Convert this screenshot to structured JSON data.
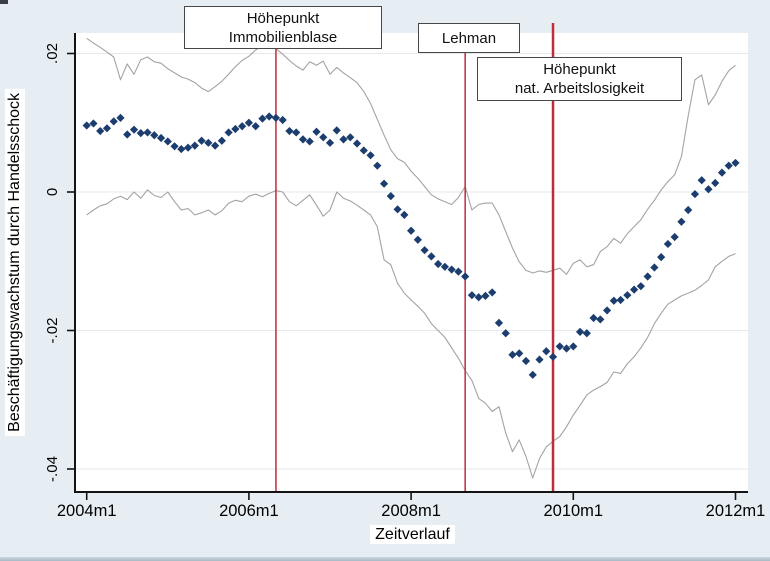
{
  "figure": {
    "background": "#e7eef3",
    "plot_background": "#ffffff",
    "grid_color": "#e3eaef",
    "axis_color": "#141414"
  },
  "annotations": [
    {
      "lines": [
        "Höhepunkt",
        "Immobilienblase"
      ]
    },
    {
      "lines": [
        "Lehman"
      ]
    },
    {
      "lines": [
        "Höhepunkt",
        "nat. Arbeitslosigkeit"
      ]
    }
  ],
  "chart_data": {
    "type": "scatter",
    "title": "",
    "xlabel": "Zeitverlauf",
    "ylabel": "Beschäftigungswachstum durch Handelsschock",
    "x_unit": "monthly index, 0 = 2004m1",
    "n_points": 97,
    "x_ticks": [
      {
        "label": "2004m1",
        "month": 0
      },
      {
        "label": "2006m1",
        "month": 24
      },
      {
        "label": "2008m1",
        "month": 48
      },
      {
        "label": "2010m1",
        "month": 72
      },
      {
        "label": "2012m1",
        "month": 96
      }
    ],
    "y_ticks": [
      {
        "label": ".02",
        "value": 0.02
      },
      {
        "label": "0",
        "value": 0
      },
      {
        "label": "-.02",
        "value": -0.02
      },
      {
        "label": "-.04",
        "value": -0.04
      }
    ],
    "ylim": [
      -0.045,
      0.023
    ],
    "grid": true,
    "legend": "none",
    "series": [
      {
        "name": "point_estimate",
        "type": "scatter",
        "marker": "diamond",
        "color": "#1c3e6f",
        "values": [
          0.0096,
          0.0099,
          0.0088,
          0.0092,
          0.0102,
          0.0107,
          0.0083,
          0.009,
          0.0085,
          0.0086,
          0.0082,
          0.0078,
          0.0073,
          0.0066,
          0.0062,
          0.0064,
          0.0067,
          0.0074,
          0.0071,
          0.0067,
          0.0074,
          0.0086,
          0.0091,
          0.0095,
          0.01,
          0.0095,
          0.0106,
          0.0109,
          0.0107,
          0.0104,
          0.0088,
          0.0086,
          0.0076,
          0.0073,
          0.0087,
          0.0079,
          0.0071,
          0.0089,
          0.0076,
          0.0079,
          0.007,
          0.006,
          0.0053,
          0.0038,
          0.0012,
          -0.0006,
          -0.0025,
          -0.0033,
          -0.0056,
          -0.0069,
          -0.0084,
          -0.0093,
          -0.0104,
          -0.0108,
          -0.0112,
          -0.0115,
          -0.0122,
          -0.0149,
          -0.0152,
          -0.015,
          -0.0145,
          -0.0189,
          -0.0204,
          -0.0235,
          -0.0233,
          -0.0244,
          -0.0264,
          -0.0242,
          -0.023,
          -0.0238,
          -0.0223,
          -0.0226,
          -0.0223,
          -0.0202,
          -0.0204,
          -0.0182,
          -0.0184,
          -0.0171,
          -0.0157,
          -0.0156,
          -0.0149,
          -0.0141,
          -0.0136,
          -0.0122,
          -0.0109,
          -0.0094,
          -0.0075,
          -0.0065,
          -0.0043,
          -0.0026,
          -0.0003,
          0.0017,
          0.0004,
          0.0013,
          0.0028,
          0.0038,
          0.0042
        ]
      },
      {
        "name": "ci_upper",
        "type": "line",
        "color": "#a3a3a3",
        "values": [
          0.0222,
          0.0215,
          0.0209,
          0.0202,
          0.0195,
          0.0162,
          0.0185,
          0.017,
          0.0191,
          0.0195,
          0.0188,
          0.0186,
          0.0178,
          0.0172,
          0.0166,
          0.0163,
          0.0158,
          0.015,
          0.0145,
          0.0152,
          0.016,
          0.017,
          0.0181,
          0.019,
          0.0196,
          0.0205,
          0.0212,
          0.0216,
          0.0207,
          0.0199,
          0.019,
          0.0182,
          0.0176,
          0.0188,
          0.0183,
          0.0189,
          0.017,
          0.018,
          0.0172,
          0.0165,
          0.0158,
          0.0145,
          0.0128,
          0.0105,
          0.0082,
          0.0061,
          0.0048,
          0.0043,
          0.003,
          0.002,
          0.0008,
          -0.0004,
          -0.001,
          -0.0014,
          -0.0018,
          -0.0008,
          0.0008,
          -0.0026,
          -0.0018,
          -0.0016,
          -0.0016,
          -0.0033,
          -0.0057,
          -0.0081,
          -0.0101,
          -0.0113,
          -0.0117,
          -0.0114,
          -0.0116,
          -0.0113,
          -0.011,
          -0.0119,
          -0.0103,
          -0.0098,
          -0.0108,
          -0.0105,
          -0.0086,
          -0.0079,
          -0.0067,
          -0.0074,
          -0.006,
          -0.005,
          -0.004,
          -0.0025,
          -0.0012,
          0.0003,
          0.0015,
          0.0025,
          0.0051,
          0.011,
          0.0162,
          0.0169,
          0.0126,
          0.014,
          0.016,
          0.0175,
          0.0183
        ]
      },
      {
        "name": "ci_lower",
        "type": "line",
        "color": "#a3a3a3",
        "values": [
          -0.0033,
          -0.0026,
          -0.002,
          -0.0017,
          -0.001,
          -0.0006,
          -0.0011,
          0.0,
          -0.0009,
          0.0003,
          -0.0005,
          -0.0008,
          0.0,
          -0.0014,
          -0.0026,
          -0.0024,
          -0.0033,
          -0.003,
          -0.0026,
          -0.0033,
          -0.0027,
          -0.0016,
          -0.0012,
          -0.0014,
          -0.0006,
          -0.0003,
          -0.0007,
          -0.0002,
          0.0002,
          0.0,
          -0.0014,
          -0.002,
          -0.0012,
          -0.0004,
          -0.0019,
          -0.0035,
          -0.0026,
          0.0,
          -0.0009,
          -0.0013,
          -0.0019,
          -0.0026,
          -0.0033,
          -0.005,
          -0.0098,
          -0.0105,
          -0.0132,
          -0.0146,
          -0.0156,
          -0.0165,
          -0.0175,
          -0.019,
          -0.02,
          -0.021,
          -0.0225,
          -0.024,
          -0.0258,
          -0.0272,
          -0.0298,
          -0.0305,
          -0.0317,
          -0.031,
          -0.0348,
          -0.0375,
          -0.0358,
          -0.0382,
          -0.0413,
          -0.0385,
          -0.0368,
          -0.036,
          -0.0353,
          -0.0339,
          -0.0322,
          -0.0308,
          -0.0293,
          -0.0286,
          -0.0281,
          -0.0275,
          -0.026,
          -0.0262,
          -0.0248,
          -0.0238,
          -0.0225,
          -0.021,
          -0.019,
          -0.0175,
          -0.0162,
          -0.0156,
          -0.015,
          -0.0146,
          -0.0142,
          -0.0135,
          -0.0127,
          -0.0108,
          -0.01,
          -0.0093,
          -0.0089
        ]
      }
    ],
    "event_lines": [
      {
        "label": "Höhepunkt Immobilienblase",
        "month": 28,
        "color": "#c22b3a",
        "width": 1.5
      },
      {
        "label": "Lehman",
        "month": 56,
        "color": "#c22b3a",
        "width": 1.5
      },
      {
        "label": "Höhepunkt nat. Arbeitslosigkeit",
        "month": 69,
        "color": "#c22b3a",
        "width": 2.5
      }
    ]
  }
}
